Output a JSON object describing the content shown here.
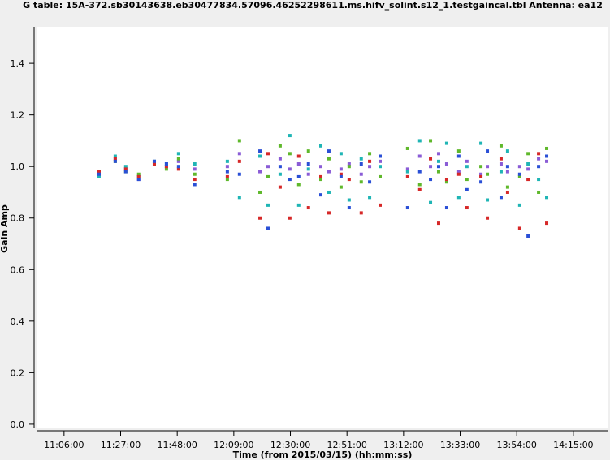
{
  "chart_data": {
    "type": "scatter",
    "title": "G table: 15A-372.sb30143638.eb30477834.57096.46252298611.ms.hifv_solint.s12_1.testgaincal.tbl   Antenna: ea12",
    "x_label": "Time (from 2015/03/15) (hh:mm:ss)",
    "y_label": "Gain Amp",
    "xlim": [
      655.8,
      867.7
    ],
    "ylim": [
      -0.016,
      1.542
    ],
    "xticks": [
      {
        "value": 666,
        "label": "11:06:00"
      },
      {
        "value": 687,
        "label": "11:27:00"
      },
      {
        "value": 708,
        "label": "11:48:00"
      },
      {
        "value": 729,
        "label": "12:09:00"
      },
      {
        "value": 750,
        "label": "12:30:00"
      },
      {
        "value": 771,
        "label": "12:51:00"
      },
      {
        "value": 792,
        "label": "13:12:00"
      },
      {
        "value": 813,
        "label": "13:33:00"
      },
      {
        "value": 834,
        "label": "13:54:00"
      },
      {
        "value": 855,
        "label": "14:15:00"
      }
    ],
    "yticks": [
      {
        "value": 0,
        "label": "0.0"
      },
      0.2,
      0.4,
      0.6,
      0.8,
      {
        "value": 1,
        "label": "1.0"
      },
      1.2,
      1.4
    ],
    "x": [
      679.0,
      685.0,
      688.9,
      693.7,
      699.5,
      704.0,
      708.5,
      714.5,
      726.6,
      731.1,
      738.7,
      741.7,
      746.2,
      749.8,
      753.1,
      756.7,
      761.3,
      764.3,
      768.8,
      771.8,
      776.3,
      779.4,
      783.3,
      793.5,
      798.0,
      802.0,
      805.0,
      808.0,
      812.5,
      815.5,
      820.7,
      823.1,
      828.2,
      830.6,
      835.1,
      838.2,
      842.1,
      845.1
    ],
    "series": [
      {
        "color": "#8a5cd6",
        "values": [
          0.97,
          1.03,
          0.99,
          0.95,
          1.02,
          1.0,
          1.02,
          0.99,
          1.0,
          1.05,
          0.98,
          1.0,
          1.03,
          0.99,
          1.01,
          0.97,
          1.0,
          0.98,
          0.99,
          1.01,
          0.97,
          1.0,
          1.02,
          0.99,
          1.04,
          1.0,
          1.05,
          1.01,
          0.98,
          1.02,
          0.97,
          1.0,
          1.01,
          0.98,
          1.0,
          0.99,
          1.03,
          1.02
        ]
      },
      {
        "color": "#5fb82b",
        "values": [
          0.98,
          1.02,
          0.98,
          0.97,
          1.01,
          0.99,
          1.03,
          0.97,
          0.95,
          1.1,
          0.9,
          0.96,
          1.08,
          1.05,
          0.93,
          1.06,
          0.95,
          1.03,
          0.92,
          1.0,
          0.94,
          1.05,
          0.96,
          1.07,
          0.93,
          1.1,
          0.98,
          0.94,
          1.06,
          0.95,
          1.0,
          0.97,
          1.08,
          0.92,
          0.96,
          1.05,
          0.9,
          1.07
        ]
      },
      {
        "color": "#1fb5b5",
        "values": [
          0.96,
          1.04,
          1.0,
          0.96,
          1.02,
          1.01,
          1.05,
          1.01,
          1.02,
          0.88,
          1.04,
          0.85,
          0.97,
          1.12,
          0.85,
          0.99,
          1.08,
          0.9,
          1.05,
          0.87,
          1.03,
          0.88,
          1.0,
          0.98,
          1.1,
          0.86,
          1.02,
          1.09,
          0.88,
          1.0,
          1.09,
          0.87,
          0.98,
          1.06,
          0.85,
          1.01,
          0.95,
          0.88
        ]
      },
      {
        "color": "#d62828",
        "values": [
          0.98,
          1.03,
          0.99,
          0.96,
          1.01,
          1.0,
          0.99,
          0.95,
          0.96,
          1.02,
          0.8,
          1.05,
          0.92,
          0.8,
          1.04,
          0.84,
          0.96,
          0.82,
          0.97,
          0.95,
          0.82,
          1.02,
          0.85,
          0.96,
          0.91,
          1.03,
          0.78,
          0.95,
          0.97,
          0.84,
          0.96,
          0.8,
          1.03,
          0.9,
          0.76,
          0.95,
          1.05,
          0.78
        ]
      },
      {
        "color": "#2a4fd6",
        "values": [
          0.97,
          1.02,
          0.98,
          0.95,
          1.02,
          1.01,
          1.0,
          0.93,
          0.98,
          0.97,
          1.06,
          0.76,
          1.0,
          0.95,
          0.96,
          1.01,
          0.89,
          1.06,
          0.96,
          0.84,
          1.01,
          0.94,
          1.04,
          0.84,
          0.98,
          0.95,
          1.0,
          0.84,
          1.04,
          0.91,
          0.94,
          1.06,
          0.88,
          1.0,
          0.97,
          0.73,
          1.0,
          1.04
        ]
      }
    ]
  }
}
